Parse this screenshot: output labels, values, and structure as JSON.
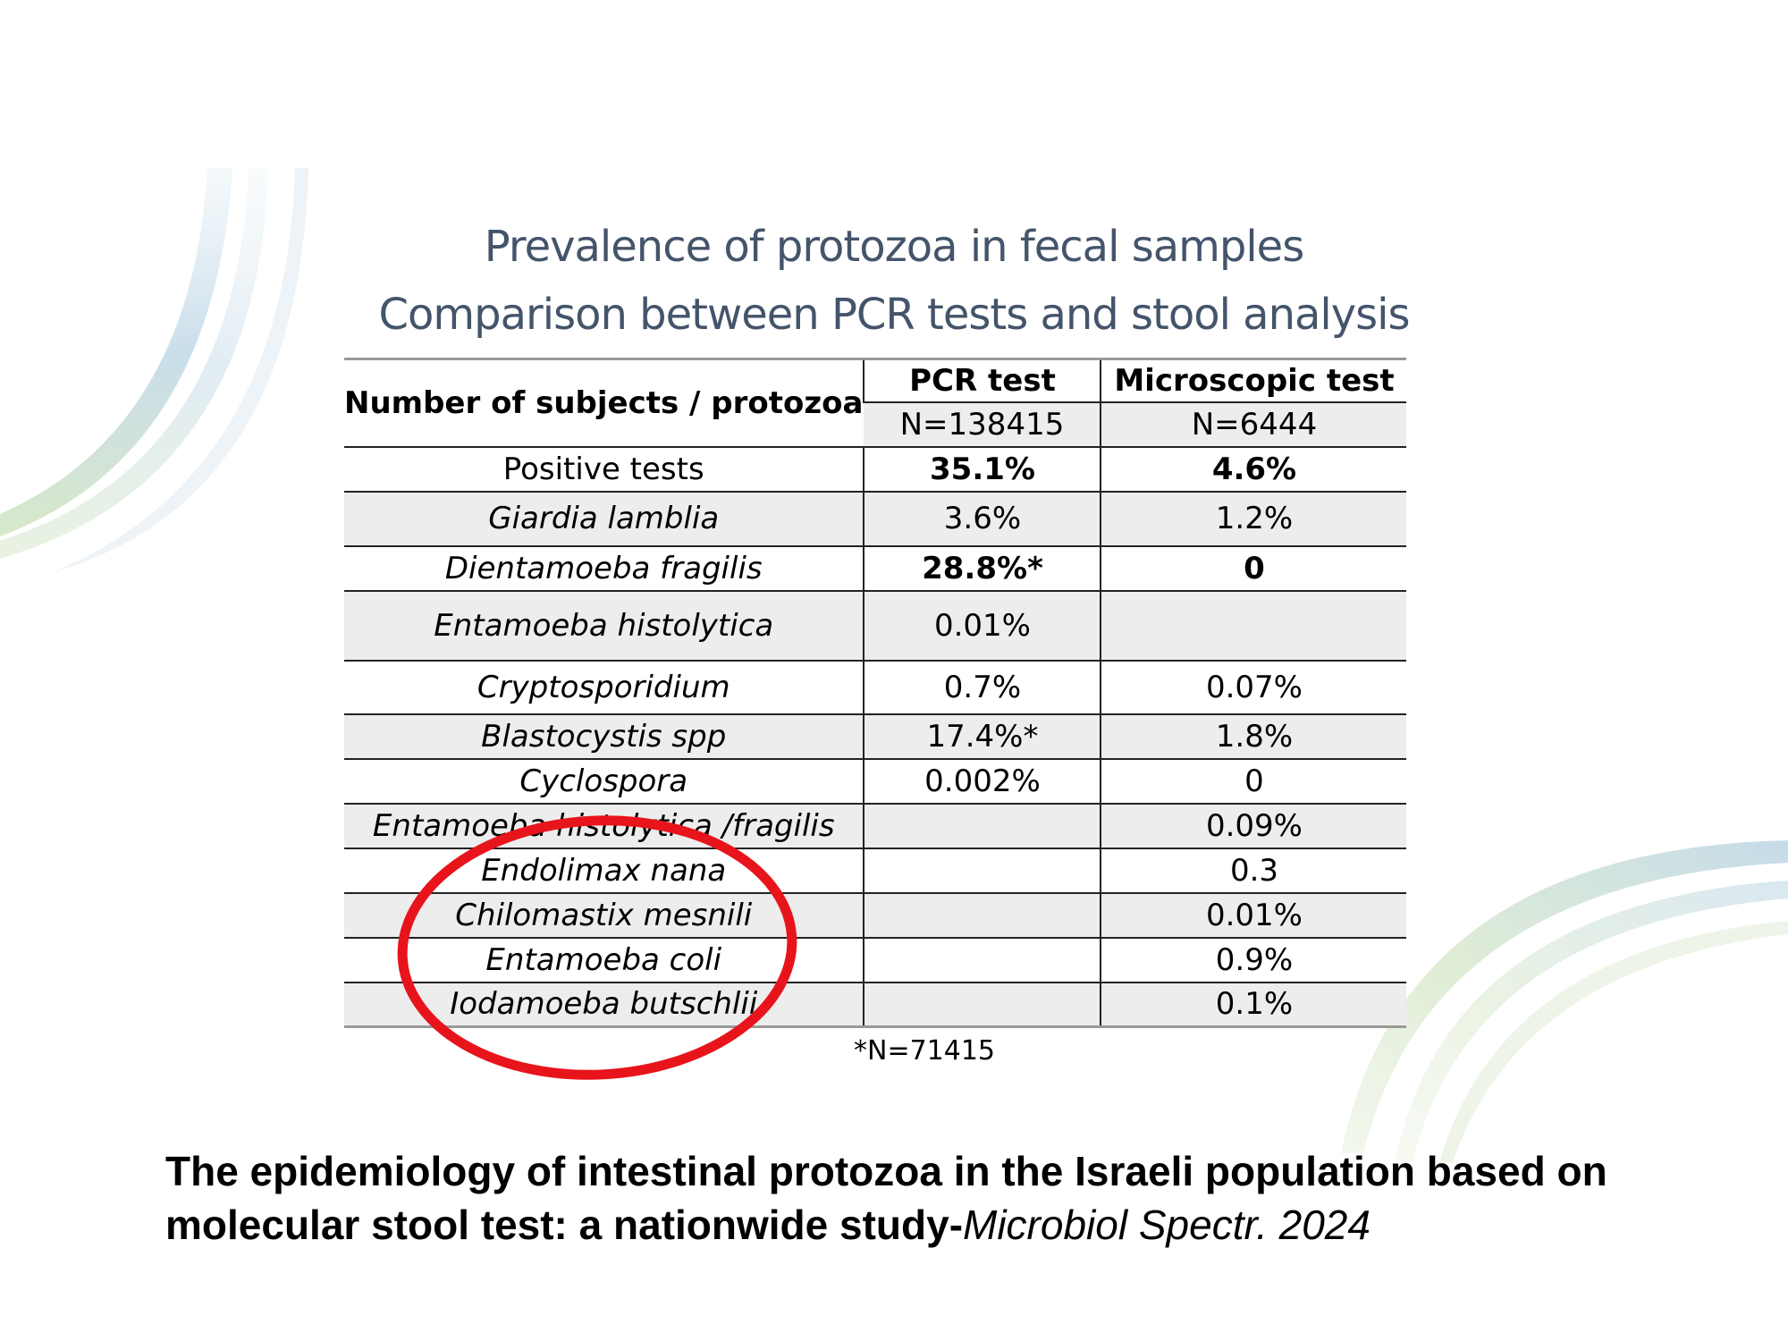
{
  "title": {
    "line1": "Prevalence of protozoa in fecal samples",
    "line2": "Comparison between PCR tests and stool analysis"
  },
  "table": {
    "row_header": "Number of subjects / protozoa",
    "columns": [
      {
        "label": "PCR test",
        "n": "N=138415"
      },
      {
        "label": "Microscopic test",
        "n": "N=6444"
      }
    ],
    "rows": [
      {
        "name": "Positive tests",
        "italic": false,
        "pcr": "35.1%",
        "micro": "4.6%",
        "bold": true
      },
      {
        "name": "Giardia lamblia",
        "italic": true,
        "pcr": "3.6%",
        "micro": "1.2%",
        "bold": false
      },
      {
        "name": "Dientamoeba fragilis",
        "italic": true,
        "pcr": "28.8%*",
        "micro": "0",
        "bold": true
      },
      {
        "name": "Entamoeba histolytica",
        "italic": true,
        "pcr": "0.01%",
        "micro": "",
        "bold": false
      },
      {
        "name": "Cryptosporidium",
        "italic": true,
        "pcr": "0.7%",
        "micro": "0.07%",
        "bold": false
      },
      {
        "name": "Blastocystis spp",
        "italic": true,
        "pcr": "17.4%*",
        "micro": "1.8%",
        "bold": false
      },
      {
        "name": "Cyclospora",
        "italic": true,
        "pcr": "0.002%",
        "micro": "0",
        "bold": false
      },
      {
        "name": "Entamoeba histolytica /fragilis",
        "italic": true,
        "pcr": "",
        "micro": "0.09%",
        "bold": false
      },
      {
        "name": "Endolimax nana",
        "italic": true,
        "pcr": "",
        "micro": "0.3",
        "bold": false
      },
      {
        "name": "Chilomastix mesnili",
        "italic": true,
        "pcr": "",
        "micro": "0.01%",
        "bold": false
      },
      {
        "name": "Entamoeba coli",
        "italic": true,
        "pcr": "",
        "micro": "0.9%",
        "bold": false
      },
      {
        "name": "Iodamoeba butschlii",
        "italic": true,
        "pcr": "",
        "micro": "0.1%",
        "bold": false
      }
    ]
  },
  "footnote": "*N=71415",
  "caption": {
    "main": "The epidemiology of intestinal protozoa in the Israeli population based on molecular stool test: a nationwide study-",
    "journal": "Microbiol Spectr. 2024"
  },
  "colors": {
    "title": "#44546a",
    "annotation_circle": "#e8141b",
    "row_shade": "#ededed",
    "swoosh_blue": "#b7d3e6",
    "swoosh_green": "#c9deb4"
  }
}
